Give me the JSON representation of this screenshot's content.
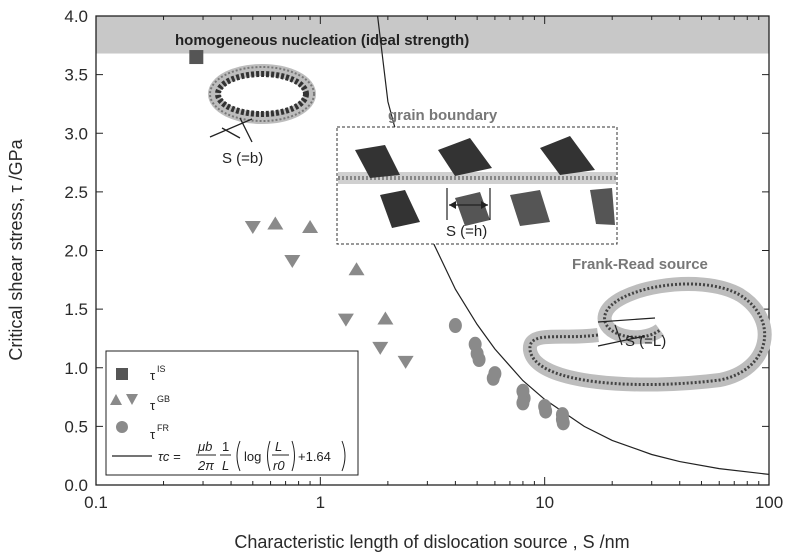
{
  "colors": {
    "band": "#c8c8c8",
    "marker": "#8a8a8a",
    "marker_is": "#555555",
    "curve": "#222222",
    "atoms_dark": "#333333",
    "atoms_light": "#bdbdbd"
  },
  "chart_data": {
    "type": "scatter",
    "x_scale": "log",
    "xlim": [
      0.1,
      100
    ],
    "ylim": [
      0.0,
      4.0
    ],
    "xlabel": "Characteristic length of dislocation source , S /nm",
    "ylabel": "Critical shear stress, τ /GPa",
    "x_ticks": [
      0.1,
      1,
      10,
      100
    ],
    "x_tick_labels": [
      "0.1",
      "1",
      "10",
      "100"
    ],
    "y_ticks": [
      0.0,
      0.5,
      1.0,
      1.5,
      2.0,
      2.5,
      3.0,
      3.5,
      4.0
    ],
    "y_tick_labels": [
      "0.0",
      "0.5",
      "1.0",
      "1.5",
      "2.0",
      "2.5",
      "3.0",
      "3.5",
      "4.0"
    ],
    "band": {
      "label": "homogeneous nucleation (ideal strength)",
      "y_from": 3.68,
      "y_to": 4.0
    },
    "series": [
      {
        "name": "τIS",
        "marker": "square",
        "points": [
          [
            0.28,
            3.65
          ]
        ]
      },
      {
        "name": "τGB",
        "marker": "triangle-up",
        "points": [
          [
            0.63,
            2.23
          ],
          [
            0.9,
            2.2
          ],
          [
            1.45,
            1.84
          ],
          [
            1.95,
            1.42
          ]
        ]
      },
      {
        "name": "τGB",
        "marker": "triangle-down",
        "points": [
          [
            0.5,
            2.2
          ],
          [
            0.75,
            1.91
          ],
          [
            1.3,
            1.41
          ],
          [
            1.85,
            1.17
          ],
          [
            2.4,
            1.05
          ]
        ]
      },
      {
        "name": "τFR",
        "marker": "circle",
        "points": [
          [
            4.0,
            1.36
          ],
          [
            4.9,
            1.2
          ],
          [
            5.0,
            1.12
          ],
          [
            5.1,
            1.07
          ],
          [
            6.0,
            0.95
          ],
          [
            5.9,
            0.91
          ],
          [
            8.0,
            0.8
          ],
          [
            8.1,
            0.74
          ],
          [
            8.0,
            0.7
          ],
          [
            10.0,
            0.67
          ],
          [
            10.1,
            0.63
          ],
          [
            12.0,
            0.6
          ],
          [
            12.0,
            0.56
          ],
          [
            12.1,
            0.53
          ]
        ]
      },
      {
        "name": "τc",
        "type": "line",
        "formula": "τc = μb/(2π) · 1/L · (log(L/r0) + 1.64)",
        "x": [
          1.8,
          2,
          2.5,
          3,
          4,
          5,
          6,
          8,
          10,
          15,
          20,
          30,
          40,
          60,
          100
        ],
        "y": [
          4.0,
          3.27,
          2.58,
          2.17,
          1.67,
          1.37,
          1.16,
          0.89,
          0.73,
          0.5,
          0.38,
          0.26,
          0.2,
          0.14,
          0.09
        ]
      }
    ],
    "legend": {
      "position": "lower-left",
      "entries": [
        {
          "main": "τ",
          "sup": "IS"
        },
        {
          "main": "τ",
          "sup": "GB"
        },
        {
          "main": "τ",
          "sup": "FR"
        }
      ],
      "formula_lhs": "τc =",
      "formula_mu_b": "μb",
      "formula_2pi": "2π",
      "formula_one": "1",
      "formula_L": "L",
      "formula_log": "log",
      "formula_L2": "L",
      "formula_r0": "r0",
      "formula_tail": "+1.64"
    },
    "annotations": {
      "grain_boundary": "grain boundary",
      "frank_read": "Frank-Read source",
      "s_b": "S (=b)",
      "s_h": "S (=h)",
      "s_l": "S (=L)"
    }
  }
}
